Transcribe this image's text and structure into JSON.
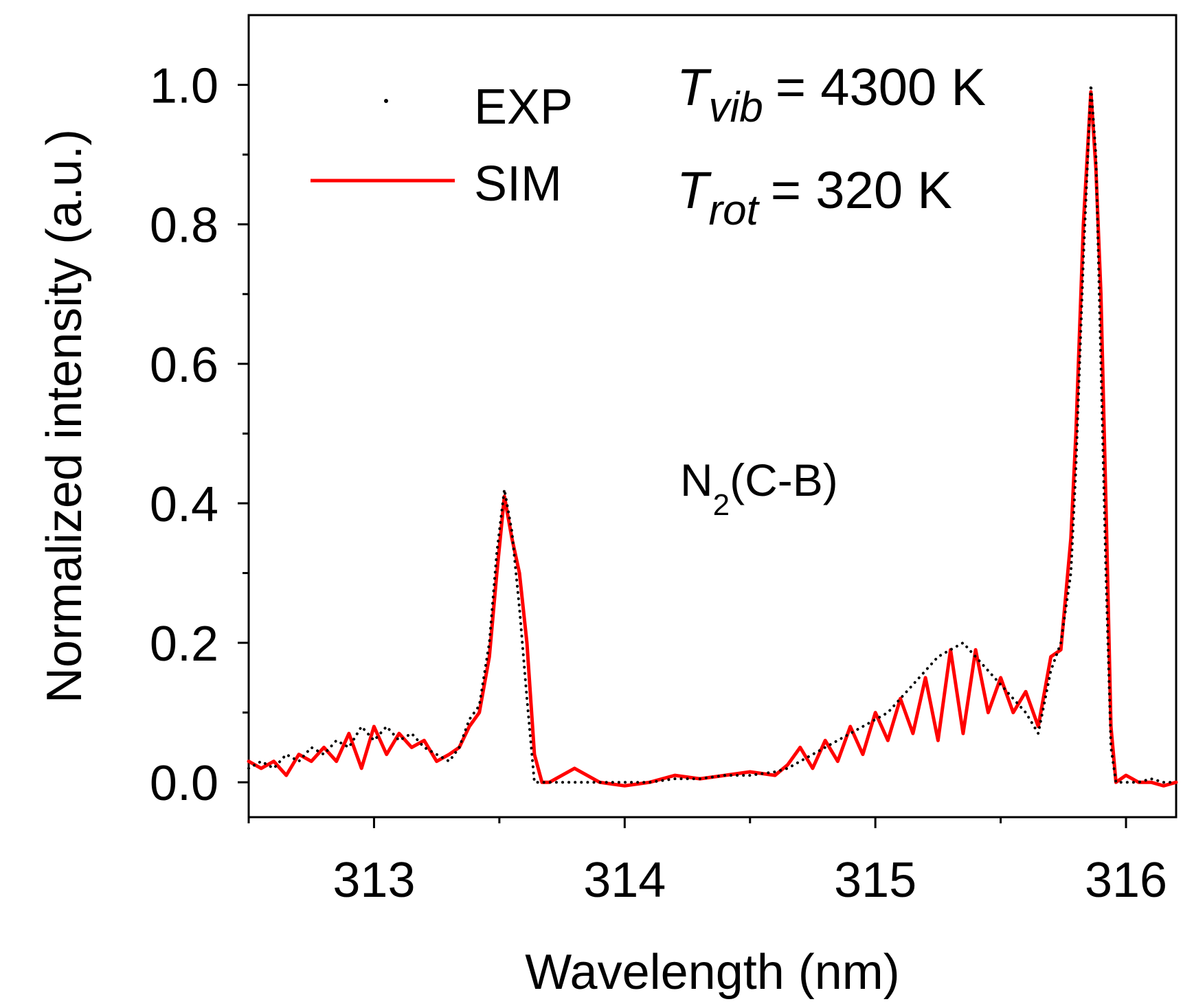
{
  "chart_data": {
    "type": "line",
    "xlabel": "Wavelength (nm)",
    "ylabel": "Normalized intensity (a.u.)",
    "xlim": [
      312.5,
      316.2
    ],
    "ylim": [
      -0.05,
      1.1
    ],
    "x_ticks": [
      313,
      314,
      315,
      316
    ],
    "x_tick_labels": [
      "313",
      "314",
      "315",
      "316"
    ],
    "y_ticks": [
      0.0,
      0.2,
      0.4,
      0.6,
      0.8,
      1.0
    ],
    "y_tick_labels": [
      "0.0",
      "0.2",
      "0.4",
      "0.6",
      "0.8",
      "1.0"
    ],
    "grid": false,
    "legend": {
      "position": "top-left",
      "entries": [
        {
          "label": "EXP",
          "style": "dotted",
          "color": "#000000"
        },
        {
          "label": "SIM",
          "style": "solid",
          "color": "#ff0000"
        }
      ]
    },
    "annotations": {
      "t_vib": {
        "symbol": "T",
        "subscript": "vib",
        "text": "= 4300 K"
      },
      "t_rot": {
        "symbol": "T",
        "subscript": "rot",
        "text": "= 320 K"
      },
      "band": {
        "main": "N",
        "subscript": "2",
        "suffix": "(C-B)"
      }
    },
    "series": [
      {
        "name": "EXP",
        "color": "#000000",
        "style": "dotted",
        "x": [
          312.5,
          312.55,
          312.6,
          312.65,
          312.7,
          312.75,
          312.8,
          312.85,
          312.9,
          312.95,
          313.0,
          313.05,
          313.1,
          313.15,
          313.2,
          313.25,
          313.3,
          313.34,
          313.38,
          313.42,
          313.46,
          313.49,
          313.52,
          313.55,
          313.58,
          313.61,
          313.64,
          313.67,
          313.7,
          313.8,
          313.9,
          314.0,
          314.1,
          314.2,
          314.3,
          314.4,
          314.5,
          314.6,
          314.65,
          314.7,
          314.75,
          314.8,
          314.85,
          314.9,
          314.95,
          315.0,
          315.05,
          315.1,
          315.15,
          315.2,
          315.25,
          315.3,
          315.35,
          315.4,
          315.45,
          315.5,
          315.55,
          315.6,
          315.65,
          315.7,
          315.74,
          315.78,
          315.8,
          315.83,
          315.86,
          315.88,
          315.9,
          315.92,
          315.94,
          315.96,
          316.0,
          316.05,
          316.1,
          316.15,
          316.2
        ],
        "y": [
          0.02,
          0.03,
          0.02,
          0.04,
          0.03,
          0.05,
          0.04,
          0.06,
          0.05,
          0.08,
          0.06,
          0.08,
          0.06,
          0.07,
          0.05,
          0.04,
          0.03,
          0.05,
          0.09,
          0.11,
          0.2,
          0.33,
          0.42,
          0.36,
          0.25,
          0.12,
          0.0,
          0.0,
          0.0,
          0.0,
          0.0,
          0.0,
          0.0,
          0.005,
          0.005,
          0.01,
          0.01,
          0.015,
          0.02,
          0.03,
          0.04,
          0.05,
          0.06,
          0.07,
          0.08,
          0.09,
          0.1,
          0.12,
          0.14,
          0.16,
          0.18,
          0.19,
          0.2,
          0.18,
          0.16,
          0.14,
          0.12,
          0.1,
          0.07,
          0.16,
          0.2,
          0.3,
          0.45,
          0.75,
          1.0,
          0.9,
          0.6,
          0.3,
          0.05,
          0.0,
          0.0,
          0.0,
          0.005,
          0.0,
          0.0
        ]
      },
      {
        "name": "SIM",
        "color": "#ff0000",
        "style": "solid",
        "x": [
          312.5,
          312.55,
          312.6,
          312.65,
          312.7,
          312.75,
          312.8,
          312.85,
          312.9,
          312.95,
          313.0,
          313.05,
          313.1,
          313.15,
          313.2,
          313.25,
          313.3,
          313.34,
          313.38,
          313.42,
          313.46,
          313.49,
          313.52,
          313.55,
          313.58,
          313.61,
          313.64,
          313.67,
          313.7,
          313.8,
          313.9,
          314.0,
          314.1,
          314.2,
          314.3,
          314.4,
          314.5,
          314.6,
          314.65,
          314.7,
          314.75,
          314.8,
          314.85,
          314.9,
          314.95,
          315.0,
          315.05,
          315.1,
          315.15,
          315.2,
          315.25,
          315.3,
          315.35,
          315.4,
          315.45,
          315.5,
          315.55,
          315.6,
          315.65,
          315.7,
          315.74,
          315.78,
          315.8,
          315.83,
          315.86,
          315.88,
          315.9,
          315.92,
          315.94,
          315.96,
          316.0,
          316.05,
          316.1,
          316.15,
          316.2
        ],
        "y": [
          0.03,
          0.02,
          0.03,
          0.01,
          0.04,
          0.03,
          0.05,
          0.03,
          0.07,
          0.02,
          0.08,
          0.04,
          0.07,
          0.05,
          0.06,
          0.03,
          0.04,
          0.05,
          0.08,
          0.1,
          0.18,
          0.3,
          0.41,
          0.35,
          0.3,
          0.2,
          0.04,
          0.0,
          0.0,
          0.02,
          0.0,
          -0.005,
          0.0,
          0.01,
          0.005,
          0.01,
          0.015,
          0.01,
          0.025,
          0.05,
          0.02,
          0.06,
          0.03,
          0.08,
          0.04,
          0.1,
          0.06,
          0.12,
          0.07,
          0.15,
          0.06,
          0.19,
          0.07,
          0.19,
          0.1,
          0.15,
          0.1,
          0.13,
          0.08,
          0.18,
          0.19,
          0.35,
          0.5,
          0.8,
          0.99,
          0.88,
          0.7,
          0.4,
          0.08,
          0.0,
          0.01,
          0.0,
          0.0,
          -0.005,
          0.0
        ]
      }
    ]
  }
}
